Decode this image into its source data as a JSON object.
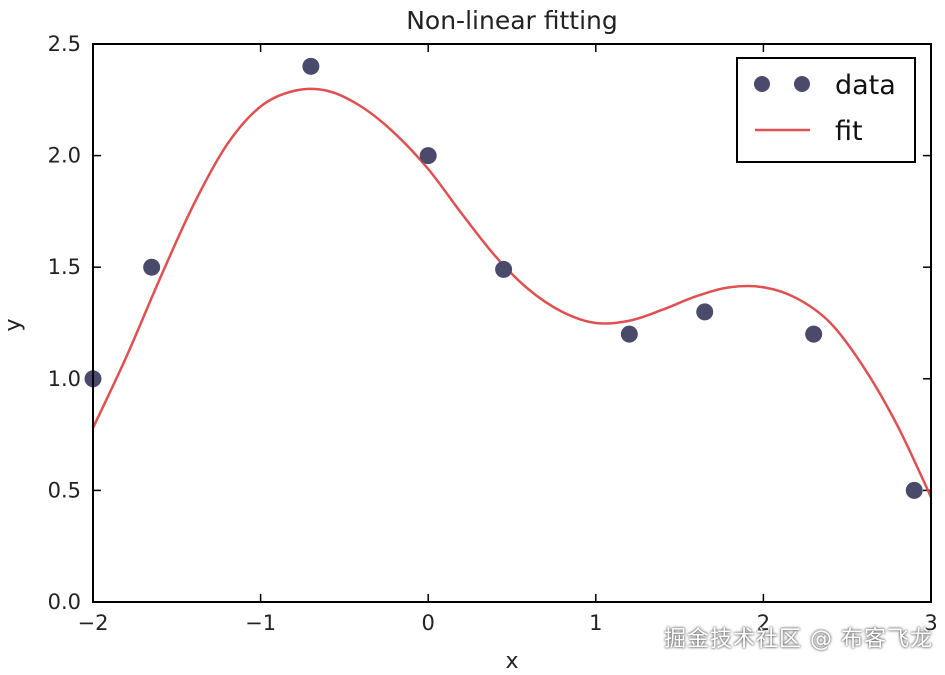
{
  "chart_data": {
    "type": "scatter",
    "title": "Non-linear fitting",
    "xlabel": "x",
    "ylabel": "y",
    "xlim": [
      -2,
      3
    ],
    "ylim": [
      0,
      2.5
    ],
    "xticks": [
      "−2",
      "−1",
      "0",
      "1",
      "2",
      "3"
    ],
    "yticks": [
      "0.0",
      "0.5",
      "1.0",
      "1.5",
      "2.0",
      "2.5"
    ],
    "legend_position": "top-right",
    "series": [
      {
        "name": "data",
        "kind": "markers",
        "color": "#4a4a6a",
        "x": [
          -2.0,
          -1.65,
          -0.7,
          0.0,
          0.45,
          1.2,
          1.65,
          2.3,
          2.9
        ],
        "y": [
          1.0,
          1.5,
          2.4,
          2.0,
          1.49,
          1.2,
          1.3,
          1.2,
          0.5
        ]
      },
      {
        "name": "fit",
        "kind": "line",
        "color": "#e05050",
        "x": [
          -2.0,
          -1.8,
          -1.6,
          -1.4,
          -1.2,
          -1.0,
          -0.8,
          -0.6,
          -0.4,
          -0.2,
          0.0,
          0.2,
          0.4,
          0.6,
          0.8,
          1.0,
          1.2,
          1.4,
          1.6,
          1.8,
          2.0,
          2.2,
          2.4,
          2.6,
          2.8,
          3.0
        ],
        "y": [
          0.78,
          1.1,
          1.45,
          1.78,
          2.05,
          2.22,
          2.29,
          2.29,
          2.22,
          2.1,
          1.94,
          1.74,
          1.55,
          1.4,
          1.3,
          1.25,
          1.26,
          1.31,
          1.37,
          1.41,
          1.41,
          1.36,
          1.25,
          1.05,
          0.79,
          0.47
        ]
      }
    ]
  },
  "watermark": "掘金技术社区 @ 布客飞龙"
}
